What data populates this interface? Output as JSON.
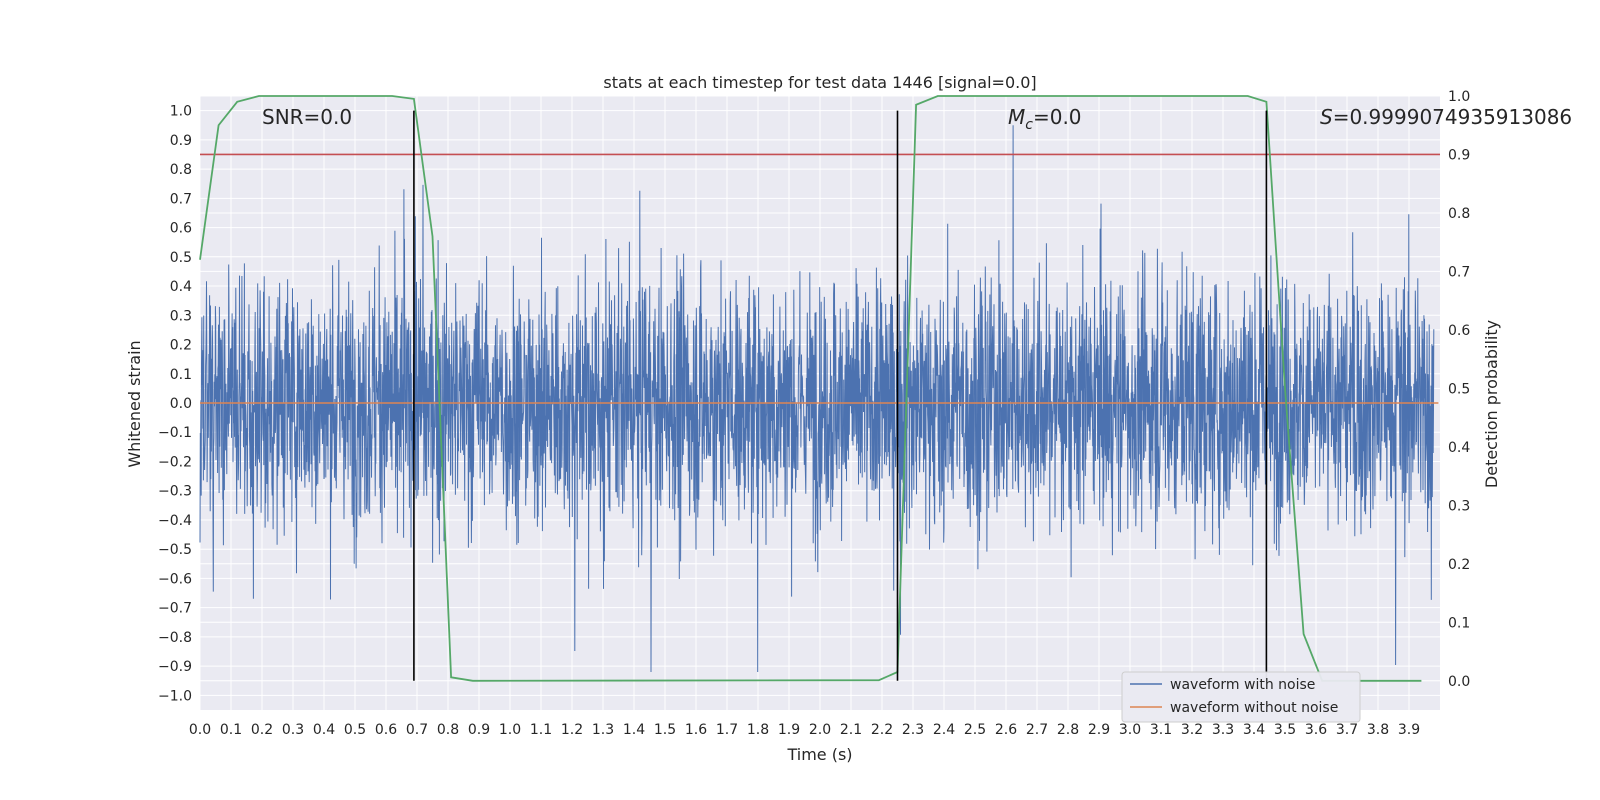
{
  "chart_data": {
    "type": "line",
    "title": "stats at each timestep for test data 1446 [signal=0.0]",
    "xlabel": "Time (s)",
    "ylabel": "Whitened strain",
    "y2label": "Detection probability",
    "xlim": [
      0.0,
      4.0
    ],
    "ylim": [
      -1.05,
      1.05
    ],
    "y2lim": [
      -0.05,
      1.0
    ],
    "xticks": [
      "0.0",
      "0.1",
      "0.2",
      "0.3",
      "0.4",
      "0.5",
      "0.6",
      "0.7",
      "0.8",
      "0.9",
      "1.0",
      "1.1",
      "1.2",
      "1.3",
      "1.4",
      "1.5",
      "1.6",
      "1.7",
      "1.8",
      "1.9",
      "2.0",
      "2.1",
      "2.2",
      "2.3",
      "2.4",
      "2.5",
      "2.6",
      "2.7",
      "2.8",
      "2.9",
      "3.0",
      "3.1",
      "3.2",
      "3.3",
      "3.4",
      "3.5",
      "3.6",
      "3.7",
      "3.8",
      "3.9"
    ],
    "yticks": [
      "1.0",
      "0.9",
      "0.8",
      "0.7",
      "0.6",
      "0.5",
      "0.4",
      "0.3",
      "0.2",
      "0.1",
      "0.0",
      "−0.1",
      "−0.2",
      "−0.3",
      "−0.4",
      "−0.5",
      "−0.6",
      "−0.7",
      "−0.8",
      "−0.9",
      "−1.0"
    ],
    "y2ticks": [
      "0.0",
      "0.1",
      "0.2",
      "0.3",
      "0.4",
      "0.5",
      "0.6",
      "0.7",
      "0.8",
      "0.9",
      "1.0"
    ],
    "annotations": {
      "snr": "SNR=0.0",
      "mc_symbol": "M",
      "mc_sub": "c",
      "mc_value": "=0.0",
      "s_symbol": "S",
      "s_value": "=0.9999074935913086"
    },
    "threshold_line": {
      "y2": 0.9,
      "color": "#c44e52"
    },
    "vertical_lines": [
      0.69,
      2.25,
      3.44
    ],
    "detection_probability": {
      "name": "Detection probability",
      "color": "#55a868",
      "x": [
        0.0,
        0.06,
        0.12,
        0.19,
        0.25,
        0.31,
        0.62,
        0.69,
        0.75,
        0.81,
        0.88,
        2.19,
        2.25,
        2.31,
        2.38,
        3.38,
        3.44,
        3.5,
        3.56,
        3.62,
        3.69,
        3.94
      ],
      "y": [
        0.72,
        0.95,
        0.99,
        1.0,
        1.0,
        1.0,
        1.0,
        0.995,
        0.76,
        0.006,
        0.0,
        0.001,
        0.015,
        0.985,
        1.0,
        1.0,
        0.99,
        0.5,
        0.08,
        0.0,
        0.0,
        0.0
      ]
    },
    "series": [
      {
        "name": "waveform with noise",
        "color": "#4c72b0",
        "amplitude_range": [
          -0.92,
          0.95
        ]
      },
      {
        "name": "waveform without noise",
        "color": "#dd8452",
        "value": 0.0
      }
    ],
    "legend_position": "lower right"
  }
}
